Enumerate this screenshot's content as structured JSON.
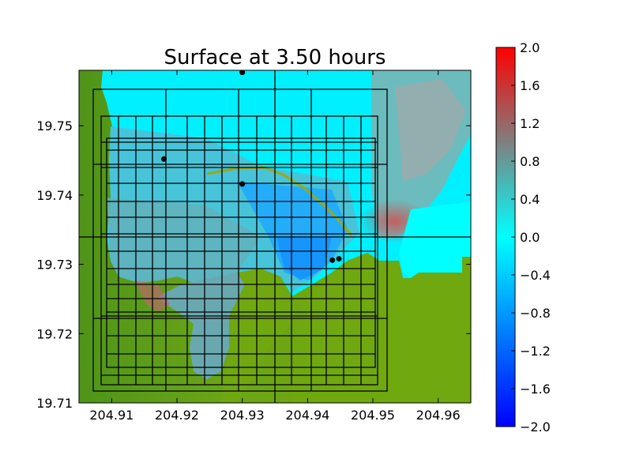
{
  "chart_data": {
    "type": "heatmap",
    "title": "Surface at 3.50 hours",
    "xlim": [
      204.905,
      204.965
    ],
    "ylim": [
      19.71,
      19.758
    ],
    "xticks": [
      204.91,
      204.92,
      204.93,
      204.94,
      204.95,
      204.96
    ],
    "xtick_labels": [
      "204.91",
      "204.92",
      "204.93",
      "204.94",
      "204.95",
      "204.96"
    ],
    "yticks": [
      19.71,
      19.72,
      19.73,
      19.74,
      19.75
    ],
    "ytick_labels": [
      "19.71",
      "19.72",
      "19.73",
      "19.74",
      "19.75"
    ],
    "colorbar": {
      "min": -2.0,
      "max": 2.0,
      "ticks": [
        2.0,
        1.6,
        1.2,
        0.8,
        0.4,
        0.0,
        -0.4,
        -0.8,
        -1.2,
        -1.6,
        -2.0
      ],
      "tick_labels": [
        "2.0",
        "1.6",
        "1.2",
        "0.8",
        "0.4",
        "0.0",
        "−0.4",
        "−0.8",
        "−1.2",
        "−1.6",
        "−2.0"
      ],
      "colormap": [
        "#0000ff",
        "#00ffff",
        "#ff0000"
      ]
    },
    "land_color": "#6aa518",
    "gauges": [
      {
        "x": 204.93,
        "y": 19.7577
      },
      {
        "x": 204.918,
        "y": 19.7452
      },
      {
        "x": 204.93,
        "y": 19.7416
      },
      {
        "x": 204.9438,
        "y": 19.7306
      },
      {
        "x": 204.9448,
        "y": 19.7308
      }
    ],
    "grid": true
  }
}
